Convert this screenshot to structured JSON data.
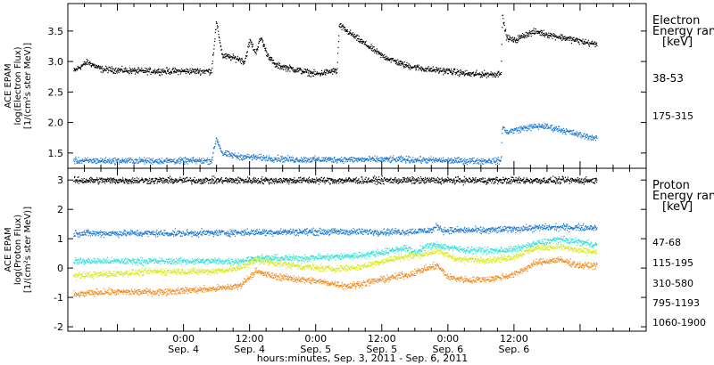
{
  "chart_data": [
    {
      "type": "scatter",
      "panel": "electron",
      "ylabel": [
        "ACE EPAM",
        "log(Electron Flux)",
        "[1/(cm²s ster MeV)]"
      ],
      "ylim": [
        1.25,
        3.95
      ],
      "yticks": [
        1.5,
        2.0,
        2.5,
        3.0,
        3.5
      ],
      "ytick_labels": [
        "1.5",
        "2.0",
        "2.5",
        "3.0",
        "3.5"
      ],
      "legend_title": [
        "Electron",
        "Energy ran",
        "[keV]"
      ],
      "series": [
        {
          "name": "38-53",
          "color": "#000000",
          "knots": [
            [
              -20,
              2.85
            ],
            [
              -17.5,
              3.0
            ],
            [
              -15,
              2.88
            ],
            [
              -8,
              2.85
            ],
            [
              0,
              2.85
            ],
            [
              5,
              2.85
            ],
            [
              5.9,
              3.65
            ],
            [
              7,
              3.1
            ],
            [
              10,
              3.05
            ],
            [
              11,
              3.0
            ],
            [
              12,
              3.35
            ],
            [
              13,
              3.15
            ],
            [
              14,
              3.4
            ],
            [
              15,
              3.15
            ],
            [
              16.5,
              2.95
            ],
            [
              20,
              2.88
            ],
            [
              24,
              2.8
            ],
            [
              27,
              2.85
            ],
            [
              27.8,
              2.85
            ],
            [
              28.2,
              3.6
            ],
            [
              32,
              3.35
            ],
            [
              36,
              3.1
            ],
            [
              40,
              2.95
            ],
            [
              44,
              2.88
            ],
            [
              48,
              2.85
            ],
            [
              52,
              2.8
            ],
            [
              56,
              2.8
            ],
            [
              57,
              2.8
            ],
            [
              57.6,
              2.85
            ],
            [
              57.8,
              3.75
            ],
            [
              58.6,
              3.4
            ],
            [
              60,
              3.35
            ],
            [
              62,
              3.45
            ],
            [
              64,
              3.5
            ],
            [
              66,
              3.45
            ],
            [
              70,
              3.38
            ],
            [
              74,
              3.3
            ],
            [
              75,
              3.3
            ]
          ]
        },
        {
          "name": "175-315",
          "color": "#1a78d2",
          "knots": [
            [
              -20,
              1.38
            ],
            [
              -10,
              1.38
            ],
            [
              0,
              1.38
            ],
            [
              5,
              1.38
            ],
            [
              5.9,
              1.75
            ],
            [
              7,
              1.5
            ],
            [
              10,
              1.45
            ],
            [
              20,
              1.4
            ],
            [
              30,
              1.4
            ],
            [
              40,
              1.4
            ],
            [
              50,
              1.38
            ],
            [
              57,
              1.38
            ],
            [
              57.6,
              1.38
            ],
            [
              57.8,
              1.95
            ],
            [
              58.5,
              1.85
            ],
            [
              62,
              1.92
            ],
            [
              65,
              1.95
            ],
            [
              68,
              1.9
            ],
            [
              72,
              1.8
            ],
            [
              75,
              1.75
            ]
          ]
        }
      ]
    },
    {
      "type": "scatter",
      "panel": "proton",
      "ylabel": [
        "ACE EPAM",
        "log(Proton Flux)",
        "[1/(cm²s ster MeV)]"
      ],
      "ylim": [
        -2.15,
        3.4
      ],
      "yticks": [
        -2,
        -1,
        0,
        1,
        2,
        3
      ],
      "ytick_labels": [
        "-2",
        "-1",
        "0",
        "1",
        "2",
        "3"
      ],
      "legend_title": [
        "Proton",
        "Energy ran",
        "[keV]"
      ],
      "series": [
        {
          "name": "47-68",
          "color": "#000000",
          "knots": [
            [
              -20,
              3.0
            ],
            [
              0,
              3.0
            ],
            [
              30,
              3.0
            ],
            [
              60,
              3.0
            ],
            [
              70,
              3.0
            ],
            [
              75,
              3.0
            ]
          ]
        },
        {
          "name": "115-195",
          "color": "#1a78d2",
          "knots": [
            [
              -20,
              1.2
            ],
            [
              0,
              1.2
            ],
            [
              20,
              1.25
            ],
            [
              40,
              1.25
            ],
            [
              45,
              1.3
            ],
            [
              46,
              1.45
            ],
            [
              47,
              1.3
            ],
            [
              55,
              1.3
            ],
            [
              60,
              1.35
            ],
            [
              66,
              1.4
            ],
            [
              75,
              1.4
            ]
          ]
        },
        {
          "name": "310-580",
          "color": "#30e0d8",
          "knots": [
            [
              -20,
              0.25
            ],
            [
              -5,
              0.25
            ],
            [
              10,
              0.25
            ],
            [
              13,
              0.35
            ],
            [
              20,
              0.35
            ],
            [
              28,
              0.4
            ],
            [
              32,
              0.45
            ],
            [
              36,
              0.55
            ],
            [
              40,
              0.7
            ],
            [
              42,
              0.55
            ],
            [
              44,
              0.75
            ],
            [
              46,
              0.8
            ],
            [
              50,
              0.65
            ],
            [
              56,
              0.6
            ],
            [
              60,
              0.65
            ],
            [
              64,
              0.85
            ],
            [
              68,
              1.0
            ],
            [
              72,
              0.9
            ],
            [
              75,
              0.8
            ]
          ]
        },
        {
          "name": "795-1193",
          "color": "#d8e818",
          "knots": [
            [
              -20,
              -0.25
            ],
            [
              -15,
              -0.2
            ],
            [
              -5,
              -0.1
            ],
            [
              5,
              -0.1
            ],
            [
              10,
              0.0
            ],
            [
              13,
              0.3
            ],
            [
              16,
              0.2
            ],
            [
              20,
              0.1
            ],
            [
              25,
              0.0
            ],
            [
              28,
              0.0
            ],
            [
              32,
              0.05
            ],
            [
              36,
              0.25
            ],
            [
              40,
              0.4
            ],
            [
              44,
              0.5
            ],
            [
              46,
              0.6
            ],
            [
              50,
              0.3
            ],
            [
              56,
              0.3
            ],
            [
              60,
              0.4
            ],
            [
              64,
              0.7
            ],
            [
              68,
              0.75
            ],
            [
              72,
              0.6
            ],
            [
              75,
              0.55
            ]
          ]
        },
        {
          "name": "1060-1900",
          "color": "#f08a1e",
          "knots": [
            [
              -20,
              -0.9
            ],
            [
              -15,
              -0.8
            ],
            [
              -5,
              -0.8
            ],
            [
              5,
              -0.7
            ],
            [
              10,
              -0.6
            ],
            [
              13,
              -0.1
            ],
            [
              16,
              -0.25
            ],
            [
              20,
              -0.35
            ],
            [
              25,
              -0.45
            ],
            [
              30,
              -0.6
            ],
            [
              34,
              -0.45
            ],
            [
              38,
              -0.3
            ],
            [
              41,
              -0.2
            ],
            [
              44,
              0.0
            ],
            [
              46,
              0.1
            ],
            [
              48,
              -0.3
            ],
            [
              52,
              -0.4
            ],
            [
              56,
              -0.35
            ],
            [
              60,
              -0.2
            ],
            [
              64,
              0.2
            ],
            [
              68,
              0.3
            ],
            [
              72,
              0.1
            ],
            [
              75,
              0.1
            ]
          ]
        }
      ]
    }
  ],
  "x_axis": {
    "range_hours": [
      -21,
      84
    ],
    "ticks": [
      {
        "hour": 0,
        "time": "0:00",
        "date": "Sep. 4"
      },
      {
        "hour": 12,
        "time": "12:00",
        "date": "Sep. 4"
      },
      {
        "hour": 24,
        "time": "0:00",
        "date": "Sep. 5"
      },
      {
        "hour": 36,
        "time": "12:00",
        "date": "Sep. 5"
      },
      {
        "hour": 48,
        "time": "0:00",
        "date": "Sep. 6"
      },
      {
        "hour": 60,
        "time": "12:00",
        "date": "Sep. 6"
      }
    ],
    "label": "hours:minutes, Sep.  3, 2011 - Sep.  6, 2011"
  }
}
